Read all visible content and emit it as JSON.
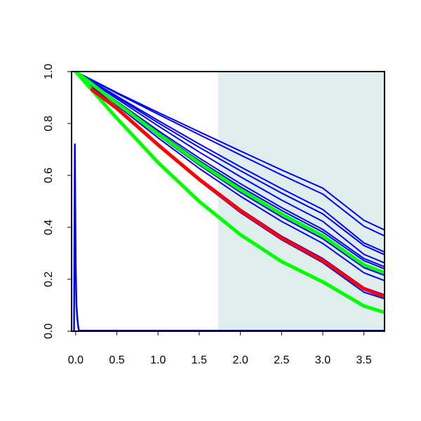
{
  "chart_data": {
    "type": "line",
    "title": "",
    "xlabel": "",
    "ylabel": "",
    "xlim": [
      -0.05,
      3.75
    ],
    "ylim": [
      0,
      1
    ],
    "x_ticks": [
      0.0,
      0.5,
      1.0,
      1.5,
      2.0,
      2.5,
      3.0,
      3.5
    ],
    "x_tick_labels": [
      "0.0",
      "0.5",
      "1.0",
      "1.5",
      "2.0",
      "2.5",
      "3.0",
      "3.5"
    ],
    "y_ticks": [
      0.0,
      0.2,
      0.4,
      0.6,
      0.8,
      1.0
    ],
    "y_tick_labels": [
      "0.0",
      "0.2",
      "0.4",
      "0.6",
      "0.8",
      "1.0"
    ],
    "grid": false,
    "legend": "none",
    "shaded_region": {
      "x_start": 1.73,
      "x_end": 3.75,
      "color": "#e0eded"
    },
    "series": [
      {
        "color": "#0000ff",
        "kind": "spike",
        "x": [
          -0.02,
          -0.01,
          0.0,
          0.01,
          0.02,
          0.03,
          0.04
        ],
        "values": [
          0.0,
          0.72,
          0.25,
          0.1,
          0.05,
          0.02,
          0.0
        ]
      },
      {
        "color": "#0000ff",
        "x": [
          0,
          0.5,
          1.0,
          1.5,
          2.0,
          2.5,
          3.0,
          3.5,
          3.75
        ],
        "values": [
          1.0,
          0.919,
          0.843,
          0.768,
          0.694,
          0.621,
          0.551,
          0.427,
          0.39
        ]
      },
      {
        "color": "#0000ff",
        "x": [
          0,
          0.5,
          1.0,
          1.5,
          2.0,
          2.5,
          3.0,
          3.5,
          3.75
        ],
        "values": [
          1.0,
          0.916,
          0.836,
          0.757,
          0.679,
          0.602,
          0.528,
          0.404,
          0.367
        ]
      },
      {
        "color": "#0000ff",
        "x": [
          0,
          0.5,
          1.0,
          1.5,
          2.0,
          2.5,
          3.0,
          3.5,
          3.75
        ],
        "values": [
          1.0,
          0.905,
          0.812,
          0.721,
          0.633,
          0.549,
          0.469,
          0.34,
          0.305
        ]
      },
      {
        "color": "#0000ff",
        "x": [
          0,
          0.5,
          1.0,
          1.5,
          2.0,
          2.5,
          3.0,
          3.5,
          3.75
        ],
        "values": [
          1.0,
          0.901,
          0.803,
          0.708,
          0.618,
          0.532,
          0.452,
          0.33,
          0.295
        ]
      },
      {
        "color": "#0000ff",
        "x": [
          0,
          0.5,
          1.0,
          1.5,
          2.0,
          2.5,
          3.0,
          3.5,
          3.75
        ],
        "values": [
          1.0,
          0.895,
          0.791,
          0.69,
          0.595,
          0.505,
          0.423,
          0.296,
          0.263
        ]
      },
      {
        "color": "#0000ff",
        "x": [
          0,
          0.5,
          1.0,
          1.5,
          2.0,
          2.5,
          3.0,
          3.5,
          3.75
        ],
        "values": [
          1.0,
          0.885,
          0.773,
          0.667,
          0.568,
          0.476,
          0.392,
          0.28,
          0.248
        ]
      },
      {
        "color": "#0000ff",
        "x": [
          0,
          0.5,
          1.0,
          1.5,
          2.0,
          2.5,
          3.0,
          3.5,
          3.75
        ],
        "values": [
          1.0,
          0.881,
          0.766,
          0.657,
          0.556,
          0.465,
          0.382,
          0.272,
          0.24
        ]
      },
      {
        "color": "#0000ff",
        "x": [
          0,
          0.5,
          1.0,
          1.5,
          2.0,
          2.5,
          3.0,
          3.5,
          3.75
        ],
        "values": [
          1.0,
          0.875,
          0.754,
          0.64,
          0.535,
          0.44,
          0.356,
          0.245,
          0.215
        ]
      },
      {
        "color": "#0000ff",
        "x": [
          0,
          0.5,
          1.0,
          1.5,
          2.0,
          2.5,
          3.0,
          3.5,
          3.75
        ],
        "values": [
          1.0,
          0.87,
          0.745,
          0.627,
          0.52,
          0.423,
          0.338,
          0.225,
          0.195
        ]
      },
      {
        "color": "#0000ff",
        "x": [
          0,
          0.5,
          1.0,
          1.5,
          2.0,
          2.5,
          3.0,
          3.5,
          3.75
        ],
        "values": [
          1.0,
          0.86,
          0.722,
          0.59,
          0.47,
          0.366,
          0.28,
          0.168,
          0.14
        ]
      },
      {
        "color": "#0000ff",
        "x": [
          0,
          0.5,
          1.0,
          1.5,
          2.0,
          2.5,
          3.0,
          3.5,
          3.75
        ],
        "values": [
          1.0,
          0.855,
          0.714,
          0.58,
          0.457,
          0.352,
          0.264,
          0.15,
          0.125
        ]
      },
      {
        "color": "#00ff00",
        "x": [
          0,
          0.5,
          1.0,
          1.5,
          2.0,
          2.5,
          3.0,
          3.5,
          3.75
        ],
        "values": [
          1.0,
          0.878,
          0.76,
          0.648,
          0.545,
          0.451,
          0.367,
          0.255,
          0.225
        ]
      },
      {
        "color": "#00ff00",
        "x": [
          0,
          0.5,
          1.0,
          1.5,
          2.0,
          2.5,
          3.0,
          3.5,
          3.75
        ],
        "values": [
          1.0,
          0.82,
          0.65,
          0.5,
          0.372,
          0.268,
          0.19,
          0.097,
          0.072
        ]
      },
      {
        "color": "#ff0000",
        "x": [
          0.2,
          0.5,
          1.0,
          1.5,
          2.0,
          2.5,
          3.0,
          3.5,
          3.75
        ],
        "values": [
          0.93,
          0.858,
          0.718,
          0.585,
          0.464,
          0.359,
          0.272,
          0.163,
          0.133
        ]
      }
    ]
  }
}
